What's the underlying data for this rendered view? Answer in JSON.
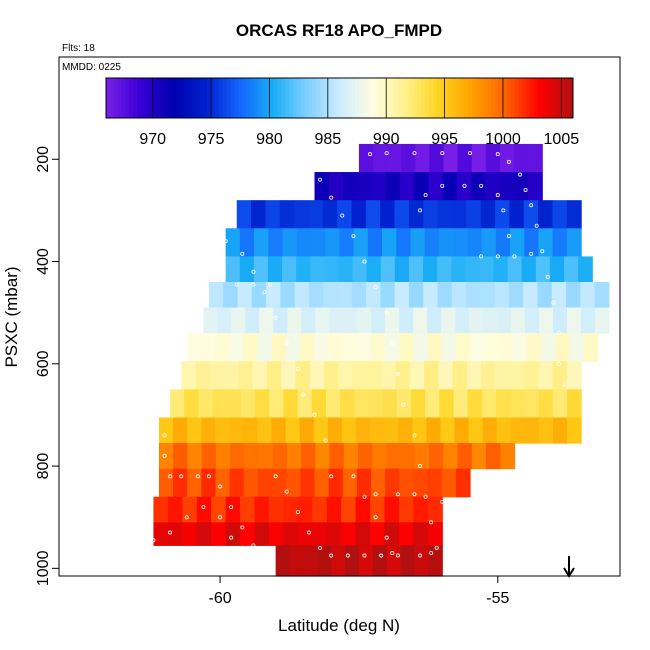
{
  "chart_data": {
    "type": "heatmap",
    "title": "ORCAS RF18 APO_FMPD",
    "notes": {
      "flights": "Flts: 18",
      "date": "MMDD: 0225"
    },
    "xlabel": "Latitude (deg N)",
    "ylabel": "PSXC (mbar)",
    "xlim": [
      -62.9,
      -52.8
    ],
    "ylim": [
      1015,
      0
    ],
    "x_ticks": [
      -60,
      -55
    ],
    "x_tick_labels": [
      "-60",
      "-55"
    ],
    "y_ticks": [
      200,
      400,
      600,
      800,
      1000
    ],
    "y_tick_labels": [
      "200",
      "400",
      "600",
      "800",
      "1000"
    ],
    "colorbar": {
      "min": 966,
      "max": 1006,
      "ticks": [
        970,
        975,
        980,
        985,
        990,
        995,
        1000,
        1005
      ],
      "tick_labels": [
        "970",
        "975",
        "980",
        "985",
        "990",
        "995",
        "1000",
        "1005"
      ],
      "colors": [
        "#7b1fe8",
        "#3b00d6",
        "#0000b0",
        "#0020cc",
        "#1464ff",
        "#19aef5",
        "#7ccfff",
        "#ccecff",
        "#fffde0",
        "#fff08a",
        "#ffd21a",
        "#ffa000",
        "#ff6000",
        "#ff0000",
        "#b01010"
      ]
    },
    "levels": [
      {
        "p": [
          170,
          225
        ],
        "lat": [
          -57.5,
          -54.2
        ],
        "value": 967
      },
      {
        "p": [
          225,
          280
        ],
        "lat": [
          -58.3,
          -54.2
        ],
        "value": 970.5
      },
      {
        "p": [
          280,
          335
        ],
        "lat": [
          -59.7,
          -53.5
        ],
        "value": 975.5
      },
      {
        "p": [
          335,
          390
        ],
        "lat": [
          -59.9,
          -53.5
        ],
        "value": 979
      },
      {
        "p": [
          390,
          440
        ],
        "lat": [
          -59.9,
          -53.3
        ],
        "value": 981
      },
      {
        "p": [
          440,
          490
        ],
        "lat": [
          -60.2,
          -53.0
        ],
        "value": 985
      },
      {
        "p": [
          490,
          540
        ],
        "lat": [
          -60.3,
          -53.0
        ],
        "value": 987
      },
      {
        "p": [
          540,
          595
        ],
        "lat": [
          -60.6,
          -53.2
        ],
        "value": 989
      },
      {
        "p": [
          595,
          650
        ],
        "lat": [
          -60.7,
          -53.5
        ],
        "value": 991
      },
      {
        "p": [
          650,
          705
        ],
        "lat": [
          -60.9,
          -53.5
        ],
        "value": 993
      },
      {
        "p": [
          705,
          755
        ],
        "lat": [
          -61.1,
          -53.5
        ],
        "value": 996
      },
      {
        "p": [
          755,
          805
        ],
        "lat": [
          -61.1,
          -54.7
        ],
        "value": 999.5
      },
      {
        "p": [
          805,
          860
        ],
        "lat": [
          -61.1,
          -55.5
        ],
        "value": 1001
      },
      {
        "p": [
          860,
          910
        ],
        "lat": [
          -61.2,
          -56.0
        ],
        "value": 1002
      },
      {
        "p": [
          910,
          955
        ],
        "lat": [
          -61.2,
          -56.0
        ],
        "value": 1004
      },
      {
        "p": [
          955,
          1015
        ],
        "lat": [
          -59.0,
          -56.0
        ],
        "value": 1005.5
      }
    ],
    "flight_track": [
      [
        -57.3,
        190
      ],
      [
        -57.0,
        188
      ],
      [
        -56.5,
        188
      ],
      [
        -56.0,
        188
      ],
      [
        -55.5,
        188
      ],
      [
        -55.0,
        190
      ],
      [
        -54.8,
        205
      ],
      [
        -54.6,
        230
      ],
      [
        -54.5,
        260
      ],
      [
        -54.4,
        290
      ],
      [
        -54.3,
        330
      ],
      [
        -54.2,
        380
      ],
      [
        -54.1,
        430
      ],
      [
        -54.0,
        480
      ],
      [
        -53.9,
        540
      ],
      [
        -53.9,
        600
      ],
      [
        -53.8,
        640
      ],
      [
        -58.2,
        240
      ],
      [
        -58.0,
        275
      ],
      [
        -57.8,
        310
      ],
      [
        -57.6,
        350
      ],
      [
        -57.4,
        400
      ],
      [
        -57.2,
        450
      ],
      [
        -57.0,
        500
      ],
      [
        -56.9,
        560
      ],
      [
        -56.8,
        620
      ],
      [
        -56.7,
        680
      ],
      [
        -56.5,
        740
      ],
      [
        -56.4,
        800
      ],
      [
        -56.3,
        860
      ],
      [
        -56.2,
        910
      ],
      [
        -56.1,
        960
      ],
      [
        -56.4,
        300
      ],
      [
        -56.3,
        270
      ],
      [
        -56.0,
        252
      ],
      [
        -55.6,
        252
      ],
      [
        -55.3,
        252
      ],
      [
        -55.0,
        270
      ],
      [
        -54.9,
        300
      ],
      [
        -54.8,
        350
      ],
      [
        -55.3,
        390
      ],
      [
        -55.0,
        390
      ],
      [
        -54.7,
        390
      ],
      [
        -54.4,
        385
      ],
      [
        -60.8,
        350
      ],
      [
        -60.5,
        350
      ],
      [
        -60.2,
        350
      ],
      [
        -59.9,
        360
      ],
      [
        -59.6,
        385
      ],
      [
        -59.4,
        420
      ],
      [
        -59.2,
        460
      ],
      [
        -59.0,
        510
      ],
      [
        -58.8,
        560
      ],
      [
        -58.6,
        610
      ],
      [
        -58.5,
        660
      ],
      [
        -58.3,
        700
      ],
      [
        -58.1,
        750
      ],
      [
        -59.7,
        445
      ],
      [
        -59.4,
        445
      ],
      [
        -59.1,
        445
      ],
      [
        -61.3,
        600
      ],
      [
        -61.2,
        650
      ],
      [
        -61.1,
        700
      ],
      [
        -61.0,
        740
      ],
      [
        -61.0,
        780
      ],
      [
        -60.9,
        820
      ],
      [
        -60.7,
        820
      ],
      [
        -60.4,
        820
      ],
      [
        -60.2,
        820
      ],
      [
        -60.0,
        840
      ],
      [
        -59.8,
        880
      ],
      [
        -59.6,
        920
      ],
      [
        -59.4,
        955
      ],
      [
        -61.8,
        945
      ],
      [
        -61.5,
        945
      ],
      [
        -61.2,
        945
      ],
      [
        -60.9,
        930
      ],
      [
        -60.6,
        900
      ],
      [
        -60.3,
        880
      ],
      [
        -60.0,
        900
      ],
      [
        -59.8,
        940
      ],
      [
        -59.6,
        960
      ],
      [
        -59.3,
        960
      ],
      [
        -59.0,
        820
      ],
      [
        -58.8,
        850
      ],
      [
        -58.6,
        890
      ],
      [
        -58.4,
        930
      ],
      [
        -58.2,
        960
      ],
      [
        -58.0,
        975
      ],
      [
        -57.7,
        975
      ],
      [
        -57.4,
        975
      ],
      [
        -57.1,
        975
      ],
      [
        -56.8,
        975
      ],
      [
        -56.4,
        975
      ],
      [
        -56.2,
        970
      ],
      [
        -58.0,
        820
      ],
      [
        -57.6,
        820
      ],
      [
        -57.4,
        860
      ],
      [
        -57.2,
        900
      ],
      [
        -57.0,
        940
      ],
      [
        -56.9,
        970
      ],
      [
        -57.2,
        855
      ],
      [
        -56.8,
        855
      ],
      [
        -56.5,
        855
      ],
      [
        -56.0,
        870
      ],
      [
        -55.8,
        900
      ]
    ]
  }
}
